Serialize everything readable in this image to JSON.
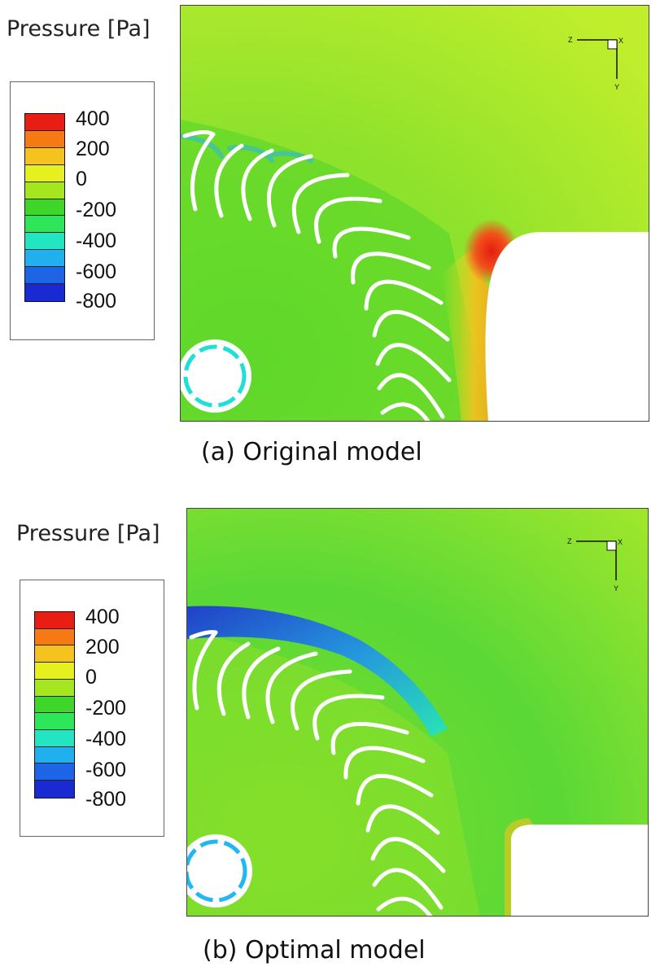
{
  "panels": [
    {
      "legend_title": "Pressure [Pa]",
      "legend_labels": [
        "400",
        "200",
        "0",
        "-200",
        "-400",
        "-600",
        "-800"
      ],
      "axis_labels": {
        "horizontal": "Z",
        "vertical": "Y",
        "out_of_plane": "X"
      },
      "caption": "(a) Original model"
    },
    {
      "legend_title": "Pressure [Pa]",
      "legend_labels": [
        "400",
        "200",
        "0",
        "-200",
        "-400",
        "-600",
        "-800"
      ],
      "axis_labels": {
        "horizontal": "Z",
        "vertical": "Y",
        "out_of_plane": "X"
      },
      "caption": "(b) Optimal model"
    }
  ],
  "colorbar_colors": [
    "#e81e14",
    "#f57a14",
    "#f5c21e",
    "#e6f01e",
    "#a6e61e",
    "#3ed628",
    "#2ee65a",
    "#22e6c2",
    "#20b0f0",
    "#1e64e6",
    "#1a2ad2"
  ]
}
